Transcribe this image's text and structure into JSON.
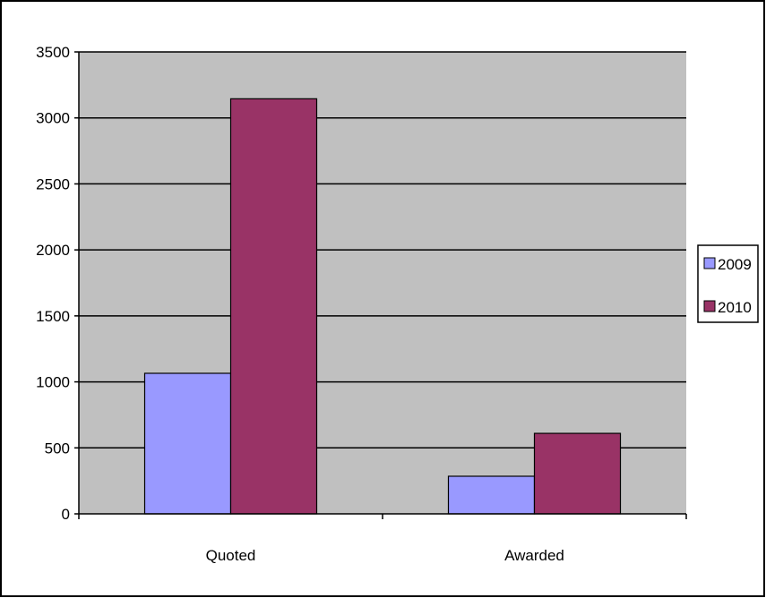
{
  "chart_data": {
    "type": "bar",
    "title": "",
    "xlabel": "",
    "ylabel": "",
    "categories": [
      "Quoted",
      "Awarded"
    ],
    "series": [
      {
        "name": "2009",
        "values": [
          1065,
          285
        ],
        "color": "#9999FF"
      },
      {
        "name": "2010",
        "values": [
          3145,
          610
        ],
        "color": "#993366"
      }
    ],
    "ylim": [
      0,
      3500
    ],
    "yticks": [
      0,
      500,
      1000,
      1500,
      2000,
      2500,
      3000,
      3500
    ],
    "plot_background": "#C0C0C0",
    "grid": true,
    "legend_position": "right"
  }
}
